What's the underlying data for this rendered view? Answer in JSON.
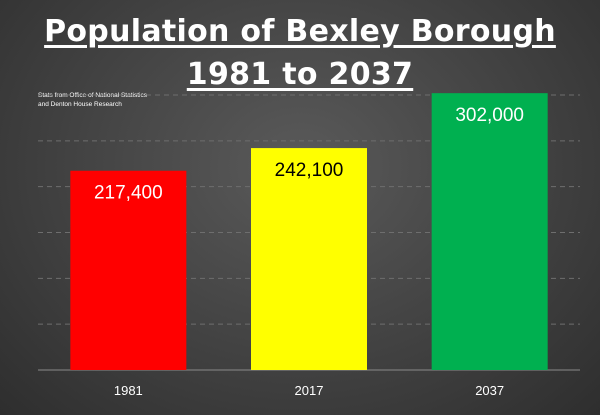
{
  "title_line_1": "Population of Bexley Borough",
  "title_line_2": "1981 to 2037",
  "source_line_1": "Stats from Office of National Statistics",
  "source_line_2": "and Denton House Research",
  "colors": {
    "background": "#454545",
    "gridline": "#6e6e6e",
    "axis_text": "#ffffff"
  },
  "chart_data": {
    "type": "bar",
    "categories": [
      "1981",
      "2017",
      "2037"
    ],
    "values": [
      217400,
      242100,
      302000
    ],
    "data_labels": [
      "217,400",
      "242,100",
      "302,000"
    ],
    "bar_colors": [
      "#ff0000",
      "#ffff00",
      "#00b050"
    ],
    "label_colors": [
      "#ffffff",
      "#000000",
      "#ffffff"
    ],
    "title": "Population of Bexley Borough 1981 to 2037",
    "xlabel": "",
    "ylabel": "",
    "ylim": [
      0,
      300000
    ],
    "grid": true,
    "legend": "none"
  }
}
